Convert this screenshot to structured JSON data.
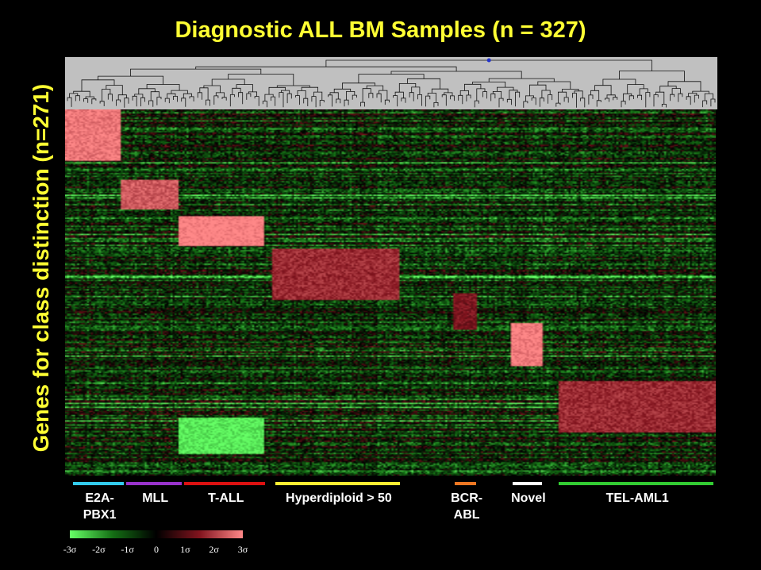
{
  "chart_data": {
    "type": "heatmap",
    "title": "Diagnostic ALL BM Samples (n = 327)",
    "ylabel": "Genes for class distinction (n=271)",
    "rows": 271,
    "columns": 327,
    "groups": [
      {
        "label": "E2A-\nPBX1",
        "color": "#33ccee",
        "start": 0.0,
        "end": 0.083
      },
      {
        "label": "MLL",
        "color": "#9933cc",
        "start": 0.083,
        "end": 0.173
      },
      {
        "label": "T-ALL",
        "color": "#dd1111",
        "start": 0.173,
        "end": 0.303
      },
      {
        "label": "Hyperdiploid > 50",
        "color": "#ffee33",
        "start": 0.315,
        "end": 0.512
      },
      {
        "label": "BCR-\nABL",
        "color": "#ee7722",
        "start": 0.594,
        "end": 0.631
      },
      {
        "label": "Novel",
        "color": "#ffffff",
        "start": 0.684,
        "end": 0.733
      },
      {
        "label": "TEL-AML1",
        "color": "#33cc33",
        "start": 0.756,
        "end": 1.0
      }
    ],
    "color_scale": {
      "low_color": "#66ff66",
      "mid_color": "#000000",
      "high_color": "#ff8888",
      "ticks": [
        "-3σ",
        "-2σ",
        "-1σ",
        "0",
        "1σ",
        "2σ",
        "3σ"
      ],
      "tick_values": [
        -3,
        -2,
        -1,
        0,
        1,
        2,
        3
      ]
    },
    "blocks": [
      {
        "group": "E2A-PBX1",
        "row_start": 0.0,
        "row_end": 0.14,
        "level": 2.8
      },
      {
        "group": "MLL",
        "row_start": 0.19,
        "row_end": 0.27,
        "level": 2.4
      },
      {
        "group": "T-ALL",
        "row_start": 0.29,
        "row_end": 0.37,
        "level": 3.0
      },
      {
        "group": "T-ALL",
        "row_start": 0.84,
        "row_end": 0.94,
        "level": -2.8
      },
      {
        "group": "Hyperdiploid > 50",
        "row_start": 0.38,
        "row_end": 0.52,
        "level": 1.8
      },
      {
        "group": "BCR-ABL",
        "row_start": 0.5,
        "row_end": 0.6,
        "level": 1.4
      },
      {
        "group": "Novel",
        "row_start": 0.58,
        "row_end": 0.7,
        "level": 2.9
      },
      {
        "group": "TEL-AML1",
        "row_start": 0.74,
        "row_end": 0.88,
        "level": 1.8
      }
    ]
  }
}
